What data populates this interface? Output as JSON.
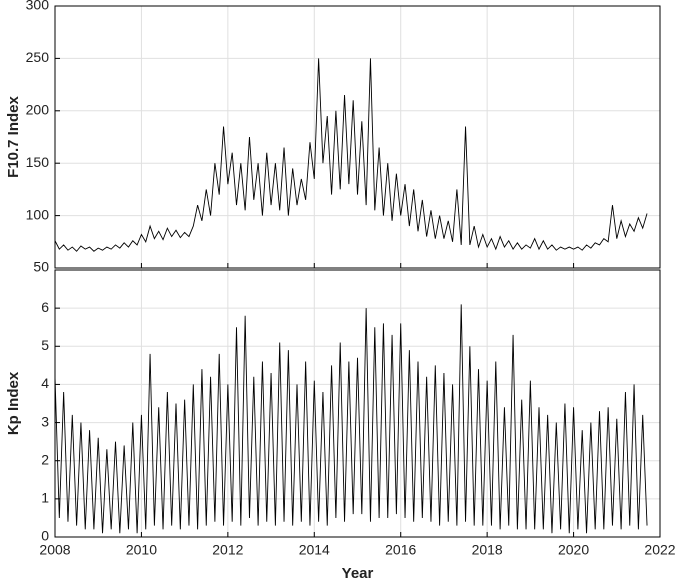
{
  "chart_data": [
    {
      "type": "line",
      "ylabel": "F10.7 Index",
      "xlim": [
        2008,
        2022
      ],
      "xticks": [
        2008,
        2010,
        2012,
        2014,
        2016,
        2018,
        2020,
        2022
      ],
      "ylim": [
        50,
        300
      ],
      "yticks": [
        50,
        100,
        150,
        200,
        250,
        300
      ],
      "grid": true,
      "x": [
        2008,
        2008.1,
        2008.2,
        2008.3,
        2008.4,
        2008.5,
        2008.6,
        2008.7,
        2008.8,
        2008.9,
        2009,
        2009.1,
        2009.2,
        2009.3,
        2009.4,
        2009.5,
        2009.6,
        2009.7,
        2009.8,
        2009.9,
        2010,
        2010.1,
        2010.2,
        2010.3,
        2010.4,
        2010.5,
        2010.6,
        2010.7,
        2010.8,
        2010.9,
        2011,
        2011.1,
        2011.2,
        2011.3,
        2011.4,
        2011.5,
        2011.6,
        2011.7,
        2011.8,
        2011.9,
        2012,
        2012.1,
        2012.2,
        2012.3,
        2012.4,
        2012.5,
        2012.6,
        2012.7,
        2012.8,
        2012.9,
        2013,
        2013.1,
        2013.2,
        2013.3,
        2013.4,
        2013.5,
        2013.6,
        2013.7,
        2013.8,
        2013.9,
        2014,
        2014.1,
        2014.2,
        2014.3,
        2014.4,
        2014.5,
        2014.6,
        2014.7,
        2014.8,
        2014.9,
        2015,
        2015.1,
        2015.2,
        2015.3,
        2015.4,
        2015.5,
        2015.6,
        2015.7,
        2015.8,
        2015.9,
        2016,
        2016.1,
        2016.2,
        2016.3,
        2016.4,
        2016.5,
        2016.6,
        2016.7,
        2016.8,
        2016.9,
        2017,
        2017.1,
        2017.2,
        2017.3,
        2017.4,
        2017.5,
        2017.6,
        2017.7,
        2017.8,
        2017.9,
        2018,
        2018.1,
        2018.2,
        2018.3,
        2018.4,
        2018.5,
        2018.6,
        2018.7,
        2018.8,
        2018.9,
        2019,
        2019.1,
        2019.2,
        2019.3,
        2019.4,
        2019.5,
        2019.6,
        2019.7,
        2019.8,
        2019.9,
        2020,
        2020.1,
        2020.2,
        2020.3,
        2020.4,
        2020.5,
        2020.6,
        2020.7,
        2020.8,
        2020.9,
        2021,
        2021.1,
        2021.2,
        2021.3,
        2021.4,
        2021.5,
        2021.6,
        2021.7
      ],
      "series": [
        {
          "color": "#000000",
          "values": [
            76,
            68,
            72,
            67,
            70,
            66,
            71,
            68,
            70,
            66,
            69,
            67,
            70,
            68,
            72,
            69,
            74,
            70,
            76,
            72,
            82,
            75,
            90,
            78,
            85,
            77,
            88,
            80,
            86,
            79,
            84,
            80,
            90,
            110,
            95,
            125,
            100,
            150,
            120,
            185,
            130,
            160,
            110,
            150,
            105,
            175,
            115,
            150,
            100,
            160,
            110,
            150,
            105,
            165,
            100,
            145,
            110,
            135,
            115,
            170,
            135,
            250,
            150,
            195,
            120,
            200,
            125,
            215,
            130,
            210,
            120,
            190,
            110,
            250,
            105,
            165,
            100,
            150,
            95,
            140,
            100,
            130,
            90,
            125,
            85,
            115,
            80,
            105,
            78,
            100,
            78,
            95,
            75,
            125,
            72,
            185,
            72,
            90,
            70,
            82,
            70,
            78,
            68,
            80,
            70,
            76,
            68,
            74,
            68,
            72,
            69,
            78,
            68,
            76,
            68,
            72,
            67,
            70,
            68,
            70,
            68,
            70,
            67,
            72,
            69,
            74,
            72,
            78,
            75,
            110,
            78,
            95,
            80,
            92,
            85,
            98,
            88,
            102
          ]
        }
      ]
    },
    {
      "type": "line",
      "ylabel": "Kp Index",
      "xlabel": "Year",
      "xlim": [
        2008,
        2022
      ],
      "xticks": [
        2008,
        2010,
        2012,
        2014,
        2016,
        2018,
        2020,
        2022
      ],
      "ylim": [
        0,
        7
      ],
      "yticks": [
        0,
        1,
        2,
        3,
        4,
        5,
        6
      ],
      "grid": true,
      "x": [
        2008,
        2008.1,
        2008.2,
        2008.3,
        2008.4,
        2008.5,
        2008.6,
        2008.7,
        2008.8,
        2008.9,
        2009,
        2009.1,
        2009.2,
        2009.3,
        2009.4,
        2009.5,
        2009.6,
        2009.7,
        2009.8,
        2009.9,
        2010,
        2010.1,
        2010.2,
        2010.3,
        2010.4,
        2010.5,
        2010.6,
        2010.7,
        2010.8,
        2010.9,
        2011,
        2011.1,
        2011.2,
        2011.3,
        2011.4,
        2011.5,
        2011.6,
        2011.7,
        2011.8,
        2011.9,
        2012,
        2012.1,
        2012.2,
        2012.3,
        2012.4,
        2012.5,
        2012.6,
        2012.7,
        2012.8,
        2012.9,
        2013,
        2013.1,
        2013.2,
        2013.3,
        2013.4,
        2013.5,
        2013.6,
        2013.7,
        2013.8,
        2013.9,
        2014,
        2014.1,
        2014.2,
        2014.3,
        2014.4,
        2014.5,
        2014.6,
        2014.7,
        2014.8,
        2014.9,
        2015,
        2015.1,
        2015.2,
        2015.3,
        2015.4,
        2015.5,
        2015.6,
        2015.7,
        2015.8,
        2015.9,
        2016,
        2016.1,
        2016.2,
        2016.3,
        2016.4,
        2016.5,
        2016.6,
        2016.7,
        2016.8,
        2016.9,
        2017,
        2017.1,
        2017.2,
        2017.3,
        2017.4,
        2017.5,
        2017.6,
        2017.7,
        2017.8,
        2017.9,
        2018,
        2018.1,
        2018.2,
        2018.3,
        2018.4,
        2018.5,
        2018.6,
        2018.7,
        2018.8,
        2018.9,
        2019,
        2019.1,
        2019.2,
        2019.3,
        2019.4,
        2019.5,
        2019.6,
        2019.7,
        2019.8,
        2019.9,
        2020,
        2020.1,
        2020.2,
        2020.3,
        2020.4,
        2020.5,
        2020.6,
        2020.7,
        2020.8,
        2020.9,
        2021,
        2021.1,
        2021.2,
        2021.3,
        2021.4,
        2021.5,
        2021.6,
        2021.7
      ],
      "series": [
        {
          "color": "#000000",
          "values": [
            4.2,
            0.5,
            3.8,
            0.4,
            3.2,
            0.3,
            3.0,
            0.2,
            2.8,
            0.2,
            2.6,
            0.1,
            2.3,
            0.2,
            2.5,
            0.1,
            2.4,
            0.2,
            3.0,
            0.1,
            3.2,
            0.2,
            4.8,
            0.3,
            3.4,
            0.2,
            3.8,
            0.3,
            3.5,
            0.2,
            3.6,
            0.3,
            4.0,
            0.2,
            4.4,
            0.3,
            4.2,
            0.4,
            4.8,
            0.3,
            4.0,
            0.4,
            5.5,
            0.3,
            5.8,
            0.5,
            4.2,
            0.3,
            4.6,
            0.4,
            4.3,
            0.3,
            5.1,
            0.4,
            4.9,
            0.3,
            4.0,
            0.4,
            4.6,
            0.3,
            4.1,
            0.4,
            3.8,
            0.3,
            4.5,
            0.5,
            5.1,
            0.4,
            4.6,
            0.6,
            4.7,
            0.6,
            6.0,
            0.4,
            5.5,
            0.5,
            5.6,
            0.5,
            5.3,
            0.6,
            5.6,
            0.5,
            4.9,
            0.4,
            4.6,
            0.5,
            4.2,
            0.4,
            4.5,
            0.3,
            4.3,
            0.4,
            4.0,
            0.3,
            6.1,
            0.4,
            5.0,
            0.3,
            4.4,
            0.3,
            4.1,
            0.3,
            4.6,
            0.2,
            3.4,
            0.3,
            5.3,
            0.2,
            3.6,
            0.2,
            4.1,
            0.2,
            3.4,
            0.2,
            3.2,
            0.1,
            3.0,
            0.2,
            3.5,
            0.1,
            3.4,
            0.2,
            2.8,
            0.1,
            3.0,
            0.2,
            3.3,
            0.2,
            3.4,
            0.3,
            3.1,
            0.2,
            3.8,
            0.3,
            4.0,
            0.2,
            3.2,
            0.3
          ]
        }
      ]
    }
  ]
}
